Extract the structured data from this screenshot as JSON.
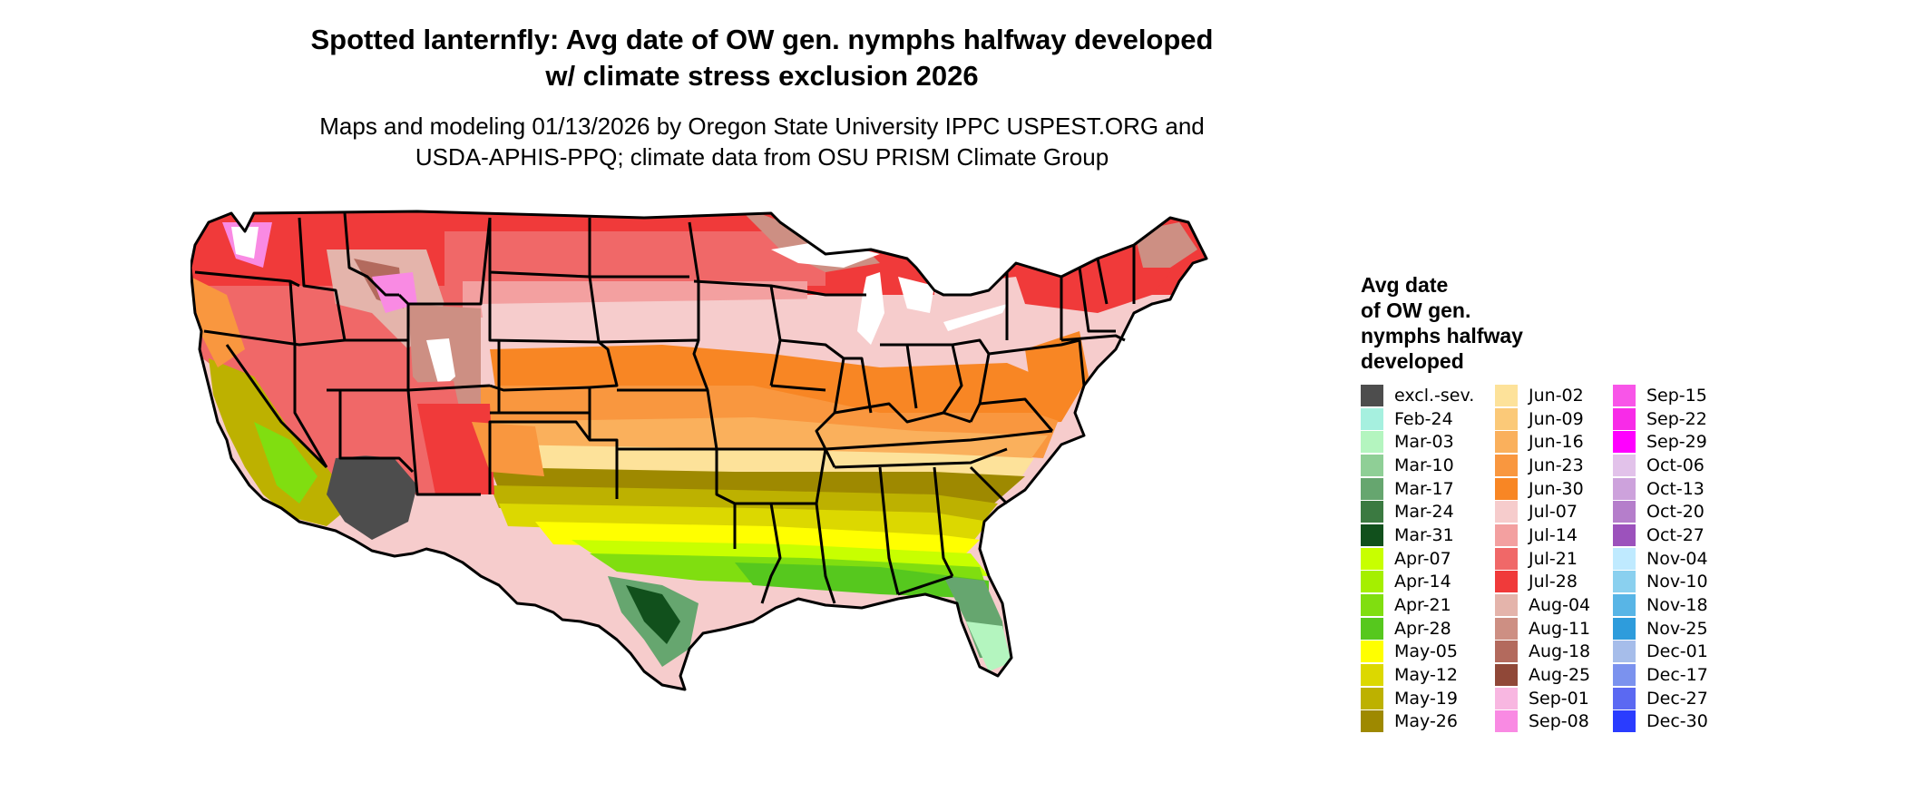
{
  "title": {
    "line1": "Spotted lanternfly: Avg date of OW gen. nymphs halfway developed",
    "line2": "w/ climate stress exclusion 2026"
  },
  "subtitle": {
    "line1": "Maps and modeling 01/13/2026 by Oregon State University IPPC USPEST.ORG and",
    "line2": "USDA-APHIS-PPQ; climate data from OSU PRISM Climate Group"
  },
  "legend": {
    "title_lines": [
      "Avg date",
      "of OW gen.",
      "nymphs halfway",
      "developed"
    ],
    "columns": [
      [
        {
          "label": "excl.-sev.",
          "color": "#4d4d4d"
        },
        {
          "label": "Feb-24",
          "color": "#a6f0df"
        },
        {
          "label": "Mar-03",
          "color": "#b4f5bf"
        },
        {
          "label": "Mar-10",
          "color": "#8fcf96"
        },
        {
          "label": "Mar-17",
          "color": "#66a66f"
        },
        {
          "label": "Mar-24",
          "color": "#3b7a41"
        },
        {
          "label": "Mar-31",
          "color": "#11501c"
        },
        {
          "label": "Apr-07",
          "color": "#c8ff00"
        },
        {
          "label": "Apr-14",
          "color": "#a5ef00"
        },
        {
          "label": "Apr-21",
          "color": "#80de10"
        },
        {
          "label": "Apr-28",
          "color": "#56c81e"
        },
        {
          "label": "May-05",
          "color": "#ffff00"
        },
        {
          "label": "May-12",
          "color": "#dcd800"
        },
        {
          "label": "May-19",
          "color": "#bdb100"
        },
        {
          "label": "May-26",
          "color": "#9e8900"
        }
      ],
      [
        {
          "label": "Jun-02",
          "color": "#fde29a"
        },
        {
          "label": "Jun-09",
          "color": "#fbc978"
        },
        {
          "label": "Jun-16",
          "color": "#fab05c"
        },
        {
          "label": "Jun-23",
          "color": "#f9973f"
        },
        {
          "label": "Jun-30",
          "color": "#f88624"
        },
        {
          "label": "Jul-07",
          "color": "#f6cccc"
        },
        {
          "label": "Jul-14",
          "color": "#f3a0a0"
        },
        {
          "label": "Jul-21",
          "color": "#f06868"
        },
        {
          "label": "Jul-28",
          "color": "#f03a3a"
        },
        {
          "label": "Aug-04",
          "color": "#e4b4ab"
        },
        {
          "label": "Aug-11",
          "color": "#cd8f83"
        },
        {
          "label": "Aug-18",
          "color": "#b36a5d"
        },
        {
          "label": "Aug-25",
          "color": "#904838"
        },
        {
          "label": "Sep-01",
          "color": "#f8b7e1"
        },
        {
          "label": "Sep-08",
          "color": "#f98ae3"
        }
      ],
      [
        {
          "label": "Sep-15",
          "color": "#f855e8"
        },
        {
          "label": "Sep-22",
          "color": "#f82be8"
        },
        {
          "label": "Sep-29",
          "color": "#ff00ff"
        },
        {
          "label": "Oct-06",
          "color": "#e2c2ea"
        },
        {
          "label": "Oct-13",
          "color": "#cda2dc"
        },
        {
          "label": "Oct-20",
          "color": "#b57ecb"
        },
        {
          "label": "Oct-27",
          "color": "#9c52bc"
        },
        {
          "label": "Nov-04",
          "color": "#bfeaff"
        },
        {
          "label": "Nov-10",
          "color": "#8ad0ef"
        },
        {
          "label": "Nov-18",
          "color": "#58b5e6"
        },
        {
          "label": "Nov-25",
          "color": "#2e9cdc"
        },
        {
          "label": "Dec-01",
          "color": "#a6bdea"
        },
        {
          "label": "Dec-17",
          "color": "#7b92ee"
        },
        {
          "label": "Dec-27",
          "color": "#5b69f2"
        },
        {
          "label": "Dec-30",
          "color": "#2a3cff"
        }
      ]
    ]
  },
  "map_palette": {
    "state_border": "#000000",
    "background": "#ffffff"
  }
}
